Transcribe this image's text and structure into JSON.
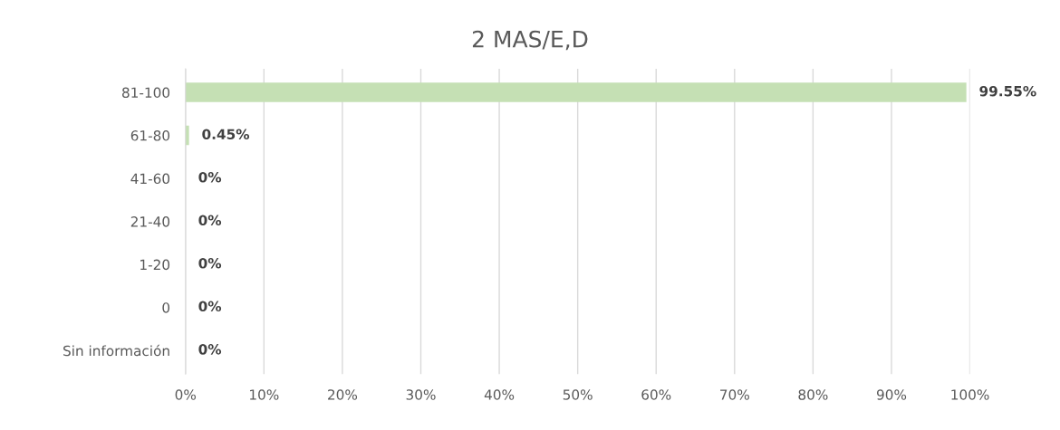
{
  "chart_data": {
    "type": "bar",
    "orientation": "horizontal",
    "title": "2 MAS/E,D",
    "categories": [
      "81-100",
      "61-80",
      "41-60",
      "21-40",
      "1-20",
      "0",
      "Sin información"
    ],
    "values": [
      99.55,
      0.45,
      0,
      0,
      0,
      0,
      0
    ],
    "value_labels": [
      "99.55%",
      "0.45%",
      "0%",
      "0%",
      "0%",
      "0%",
      "0%"
    ],
    "color": "#c5e0b4",
    "xlim": [
      0,
      100
    ],
    "xticks": [
      {
        "value": 0,
        "label": "0%"
      },
      {
        "value": 10,
        "label": "10%"
      },
      {
        "value": 20,
        "label": "20%"
      },
      {
        "value": 30,
        "label": "30%"
      },
      {
        "value": 40,
        "label": "40%"
      },
      {
        "value": 50,
        "label": "50%"
      },
      {
        "value": 60,
        "label": "60%"
      },
      {
        "value": 70,
        "label": "70%"
      },
      {
        "value": 80,
        "label": "80%"
      },
      {
        "value": 90,
        "label": "90%"
      },
      {
        "value": 100,
        "label": "100%"
      }
    ],
    "grid": "x"
  }
}
